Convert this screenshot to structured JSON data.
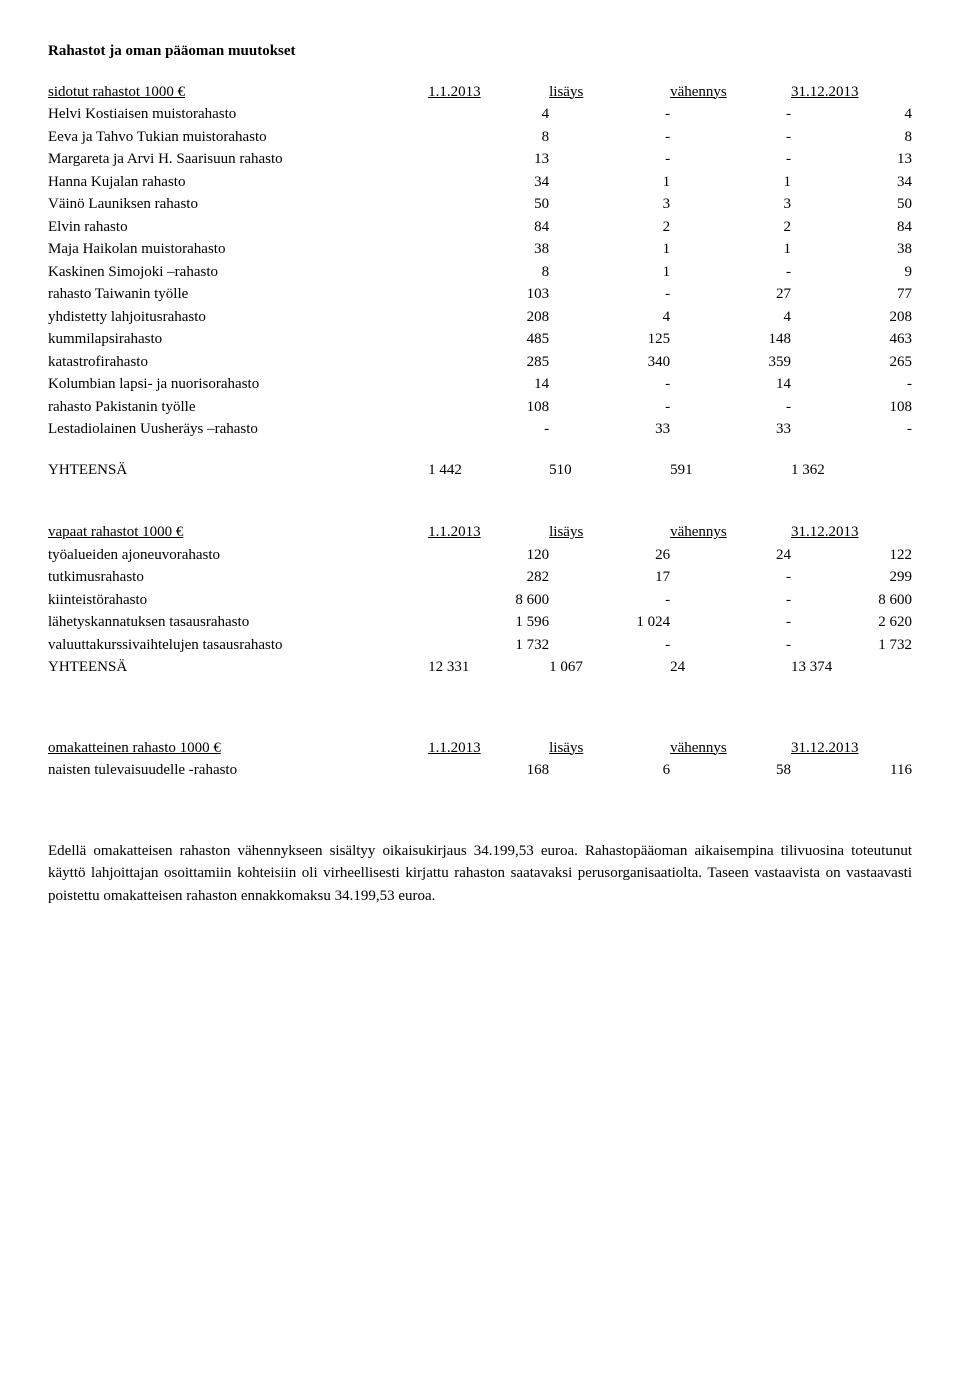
{
  "title": "Rahastot ja oman pääoman muutokset",
  "section1": {
    "header": {
      "label": "sidotut rahastot 1000 €",
      "c1": "1.1.2013",
      "c2": "lisäys",
      "c3": "vähennys",
      "c4": "31.12.2013"
    },
    "rows": [
      {
        "label": "Helvi Kostiaisen muistorahasto",
        "v1": "4",
        "v2": "-",
        "v3": "-",
        "v4": "4"
      },
      {
        "label": "Eeva  ja Tahvo Tukian muistorahasto",
        "v1": "8",
        "v2": "-",
        "v3": "-",
        "v4": "8"
      },
      {
        "label": "Margareta ja Arvi H. Saarisuun rahasto",
        "v1": "13",
        "v2": "-",
        "v3": "-",
        "v4": "13"
      },
      {
        "label": "Hanna Kujalan rahasto",
        "v1": "34",
        "v2": "1",
        "v3": "1",
        "v4": "34"
      },
      {
        "label": "Väinö Launiksen rahasto",
        "v1": "50",
        "v2": "3",
        "v3": "3",
        "v4": "50"
      },
      {
        "label": "Elvin rahasto",
        "v1": "84",
        "v2": "2",
        "v3": "2",
        "v4": "84"
      },
      {
        "label": "Maja Haikolan muistorahasto",
        "v1": "38",
        "v2": "1",
        "v3": "1",
        "v4": "38"
      },
      {
        "label": "Kaskinen Simojoki –rahasto",
        "v1": "8",
        "v2": "1",
        "v3": "-",
        "v4": "9"
      },
      {
        "label": "rahasto Taiwanin työlle",
        "v1": "103",
        "v2": "-",
        "v3": "27",
        "v4": "77"
      },
      {
        "label": "yhdistetty lahjoitusrahasto",
        "v1": "208",
        "v2": "4",
        "v3": "4",
        "v4": "208"
      },
      {
        "label": "kummilapsirahasto",
        "v1": "485",
        "v2": "125",
        "v3": "148",
        "v4": "463"
      },
      {
        "label": "katastrofirahasto",
        "v1": "285",
        "v2": "340",
        "v3": "359",
        "v4": "265"
      },
      {
        "label": "Kolumbian lapsi- ja nuorisorahasto",
        "v1": "14",
        "v2": "-",
        "v3": "14",
        "v4": "-"
      },
      {
        "label": "rahasto Pakistanin työlle",
        "v1": "108",
        "v2": "-",
        "v3": "-",
        "v4": "108"
      },
      {
        "label": "Lestadiolainen Uusheräys –rahasto",
        "v1": "-",
        "v2": "33",
        "v3": "33",
        "v4": "-"
      }
    ],
    "total": {
      "label": "YHTEENSÄ",
      "v1": "1 442",
      "v2": "510",
      "v3": "591",
      "v4": "1 362"
    }
  },
  "section2": {
    "header": {
      "label": "vapaat rahastot 1000 €",
      "c1": "1.1.2013",
      "c2": "lisäys",
      "c3": "vähennys",
      "c4": "31.12.2013"
    },
    "rows": [
      {
        "label": "työalueiden ajoneuvorahasto",
        "v1": "120",
        "v2": "26",
        "v3": "24",
        "v4": "122"
      },
      {
        "label": "tutkimusrahasto",
        "v1": "282",
        "v2": "17",
        "v3": "-",
        "v4": "299"
      },
      {
        "label": "kiinteistörahasto",
        "v1": "8 600",
        "v2": "-",
        "v3": "-",
        "v4": "8 600"
      },
      {
        "label": "lähetyskannatuksen tasausrahasto",
        "v1": "1 596",
        "v2": "1 024",
        "v3": "-",
        "v4": "2 620"
      },
      {
        "label": "valuuttakurssivaihtelujen tasausrahasto",
        "v1": "1 732",
        "v2": "-",
        "v3": "-",
        "v4": "1 732"
      }
    ],
    "total": {
      "label": "YHTEENSÄ",
      "v1": "12 331",
      "v2": "1 067",
      "v3": "24",
      "v4": "13 374"
    }
  },
  "section3": {
    "header": {
      "label": "omakatteinen rahasto 1000 €",
      "c1": "1.1.2013",
      "c2": "lisäys",
      "c3": "vähennys",
      "c4": "31.12.2013"
    },
    "rows": [
      {
        "label": "naisten tulevaisuudelle -rahasto",
        "v1": "168",
        "v2": "6",
        "v3": "58",
        "v4": "116"
      }
    ]
  },
  "footer": "Edellä omakatteisen rahaston vähennykseen sisältyy oikaisukirjaus 34.199,53 euroa.  Rahastopääoman aikaisempina tilivuosina toteutunut käyttö lahjoittajan osoittamiin kohteisiin oli virheellisesti kirjattu rahaston saatavaksi perusorganisaatiolta. Taseen vastaavista on vastaavasti poistettu omakatteisen rahaston ennakkomaksu 34.199,53 euroa."
}
